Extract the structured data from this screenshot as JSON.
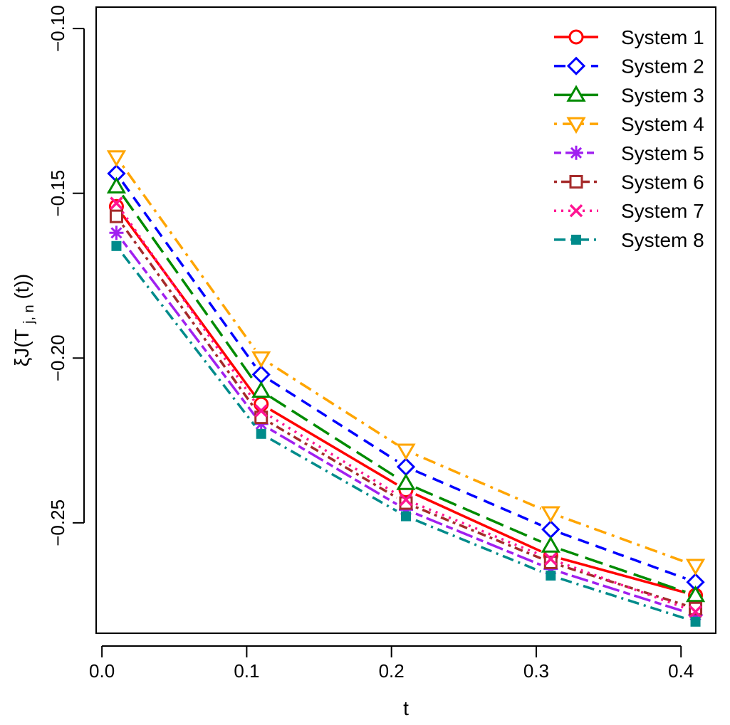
{
  "chart_data": {
    "type": "line",
    "title": "",
    "xlabel": "t",
    "ylabel": {
      "main": "ξJ(T",
      "subscript": "j, n",
      "suffix": "(t))"
    },
    "x": [
      0.01,
      0.11,
      0.21,
      0.31,
      0.41
    ],
    "xlim": [
      -0.004,
      0.424
    ],
    "ylim": [
      -0.2835,
      -0.0935
    ],
    "xticks": [
      0.0,
      0.1,
      0.2,
      0.3,
      0.4
    ],
    "xtick_labels": [
      "0.0",
      "0.1",
      "0.2",
      "0.3",
      "0.4"
    ],
    "yticks": [
      -0.1,
      -0.15,
      -0.2,
      -0.25
    ],
    "ytick_labels": [
      "−0.10",
      "−0.15",
      "−0.20",
      "−0.25"
    ],
    "grid": false,
    "legend_position": "top-right",
    "series": [
      {
        "name": "System 1",
        "color": "#ff0000",
        "dash": "solid",
        "marker": "circle",
        "values": [
          -0.154,
          -0.214,
          -0.24,
          -0.26,
          -0.272
        ]
      },
      {
        "name": "System 2",
        "color": "#0000ff",
        "dash": "dashed",
        "marker": "diamond",
        "values": [
          -0.144,
          -0.205,
          -0.233,
          -0.252,
          -0.268
        ]
      },
      {
        "name": "System 3",
        "color": "#008b00",
        "dash": "longdash",
        "marker": "triangle-up",
        "values": [
          -0.148,
          -0.21,
          -0.238,
          -0.257,
          -0.272
        ]
      },
      {
        "name": "System 4",
        "color": "#ffa500",
        "dash": "dotdash",
        "marker": "triangle-down",
        "values": [
          -0.139,
          -0.2,
          -0.228,
          -0.247,
          -0.263
        ]
      },
      {
        "name": "System 5",
        "color": "#a020f0",
        "dash": "twodash",
        "marker": "asterisk",
        "values": [
          -0.162,
          -0.22,
          -0.246,
          -0.264,
          -0.278
        ]
      },
      {
        "name": "System 6",
        "color": "#a52a2a",
        "dash": "dotted-dash",
        "marker": "square",
        "values": [
          -0.157,
          -0.218,
          -0.244,
          -0.262,
          -0.276
        ]
      },
      {
        "name": "System 7",
        "color": "#ff1493",
        "dash": "dotted",
        "marker": "cross",
        "values": [
          -0.153,
          -0.216,
          -0.243,
          -0.261,
          -0.277
        ]
      },
      {
        "name": "System 8",
        "color": "#008b8b",
        "dash": "dashdot",
        "marker": "filled-square",
        "values": [
          -0.166,
          -0.223,
          -0.248,
          -0.266,
          -0.28
        ]
      }
    ]
  }
}
